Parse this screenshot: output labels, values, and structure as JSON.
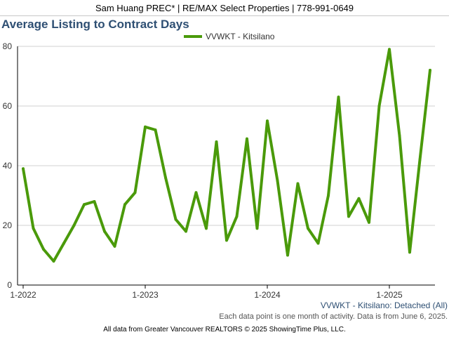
{
  "header": {
    "banner": "Sam Huang PREC* | RE/MAX Select Properties | 778-991-0649"
  },
  "footer": {
    "series_caption": "VVWKT - Kitsilano: Detached (All)",
    "activity_note": "Each data point is one month of activity. Data is from June 6, 2025.",
    "source_note": "All data from Greater Vancouver REALTORS © 2025 ShowingTime Plus, LLC."
  },
  "colors": {
    "series": "#4a9a0a",
    "title": "#2e4f73",
    "grid": "#d0d0d0",
    "axis": "#000000"
  },
  "chart_data": {
    "type": "line",
    "title": "Average Listing to Contract Days",
    "legend_position": "top-center",
    "grid": true,
    "ylim": [
      0,
      80
    ],
    "yticks": [
      0,
      20,
      40,
      60,
      80
    ],
    "xticks": [
      {
        "label": "1-2022",
        "index": 0
      },
      {
        "label": "1-2023",
        "index": 12
      },
      {
        "label": "1-2024",
        "index": 24
      },
      {
        "label": "1-2025",
        "index": 36
      }
    ],
    "x": [
      "2022-01",
      "2022-02",
      "2022-03",
      "2022-04",
      "2022-05",
      "2022-06",
      "2022-07",
      "2022-08",
      "2022-09",
      "2022-10",
      "2022-11",
      "2022-12",
      "2023-01",
      "2023-02",
      "2023-03",
      "2023-04",
      "2023-05",
      "2023-06",
      "2023-07",
      "2023-08",
      "2023-09",
      "2023-10",
      "2023-11",
      "2023-12",
      "2024-01",
      "2024-02",
      "2024-03",
      "2024-04",
      "2024-05",
      "2024-06",
      "2024-07",
      "2024-08",
      "2024-09",
      "2024-10",
      "2024-11",
      "2024-12",
      "2025-01",
      "2025-02",
      "2025-03",
      "2025-04",
      "2025-05"
    ],
    "series": [
      {
        "name": "VVWKT - Kitsilano",
        "values": [
          39,
          19,
          12,
          8,
          14,
          20,
          27,
          28,
          18,
          13,
          27,
          31,
          53,
          52,
          36,
          22,
          18,
          31,
          19,
          48,
          15,
          23,
          49,
          19,
          55,
          35,
          10,
          34,
          19,
          14,
          30,
          63,
          23,
          29,
          21,
          60,
          79,
          50,
          11,
          42,
          72
        ]
      }
    ]
  }
}
